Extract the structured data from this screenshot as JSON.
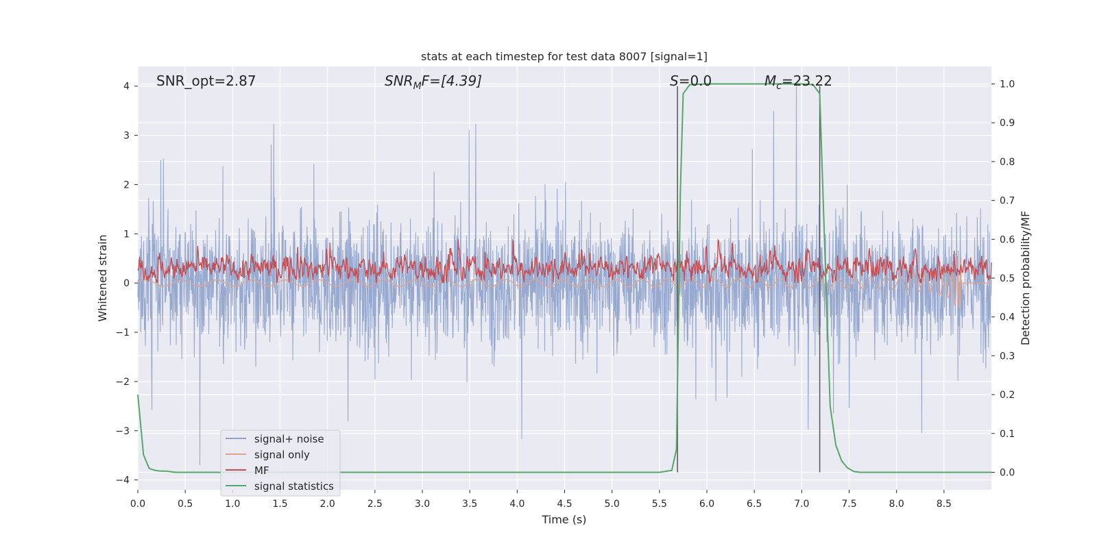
{
  "chart_data": {
    "type": "line",
    "title": "stats at each timestep for test data 8007 [signal=1]",
    "xlabel": "Time (s)",
    "ylabel_left": "Whitened strain",
    "ylabel_right": "Detection probability/MF",
    "xlim": [
      0.0,
      9.0
    ],
    "ylim_left": [
      -4.2,
      4.4
    ],
    "ylim_right": [
      -0.045,
      1.045
    ],
    "grid": true,
    "legend_position": "lower-left",
    "x_ticks": [
      "0.0",
      "0.5",
      "1.0",
      "1.5",
      "2.0",
      "2.5",
      "3.0",
      "3.5",
      "4.0",
      "4.5",
      "5.0",
      "5.5",
      "6.0",
      "6.5",
      "7.0",
      "7.5",
      "8.0",
      "8.5"
    ],
    "y_ticks_left": [
      "−4",
      "−3",
      "−2",
      "−1",
      "0",
      "1",
      "2",
      "3",
      "4"
    ],
    "y_ticks_right": [
      "0.0",
      "0.1",
      "0.2",
      "0.3",
      "0.4",
      "0.5",
      "0.6",
      "0.7",
      "0.8",
      "0.9",
      "1.0"
    ],
    "annotations": {
      "snr_opt": "SNR_opt=2.87",
      "snr_mf_main": "SNR",
      "snr_mf_sub": "M",
      "snr_mf_rest": "F=[4.39]",
      "s_main": "S",
      "s_rest": "=0.0",
      "mc_main": "M",
      "mc_sub": "c",
      "mc_rest": "=23.22"
    },
    "vlines": [
      5.69,
      7.19
    ],
    "series": [
      {
        "name": "signal+ noise",
        "color": "#8fa2cc",
        "axis": "left",
        "kind": "noise",
        "amplitude_range": [
          -3.7,
          4.0
        ]
      },
      {
        "name": "signal only",
        "color": "#e0a48c",
        "axis": "left",
        "kind": "chirp",
        "chirp_end_time": 8.68,
        "chirp_min": -0.55
      },
      {
        "name": "MF",
        "color": "#c44e52",
        "axis": "left",
        "kind": "mf",
        "typical_range": [
          0.0,
          0.9
        ]
      },
      {
        "name": "signal statistics",
        "color": "#55a868",
        "axis": "right",
        "kind": "line",
        "x": [
          0.0,
          0.06,
          0.12,
          0.18,
          0.24,
          0.3,
          0.4,
          1.0,
          2.0,
          3.0,
          4.0,
          5.0,
          5.5,
          5.63,
          5.68,
          5.72,
          5.75,
          5.82,
          6.0,
          6.5,
          7.0,
          7.12,
          7.19,
          7.24,
          7.3,
          7.36,
          7.42,
          7.48,
          7.55,
          7.62,
          8.0,
          9.0
        ],
        "y": [
          0.2,
          0.045,
          0.01,
          0.005,
          0.003,
          0.003,
          0.0,
          0.0,
          0.0,
          0.0,
          0.0,
          0.0,
          0.0,
          0.005,
          0.06,
          0.72,
          0.975,
          0.998,
          1.0,
          1.0,
          1.0,
          0.998,
          0.975,
          0.6,
          0.17,
          0.07,
          0.03,
          0.012,
          0.002,
          0.0,
          0.0,
          0.0
        ]
      }
    ]
  }
}
